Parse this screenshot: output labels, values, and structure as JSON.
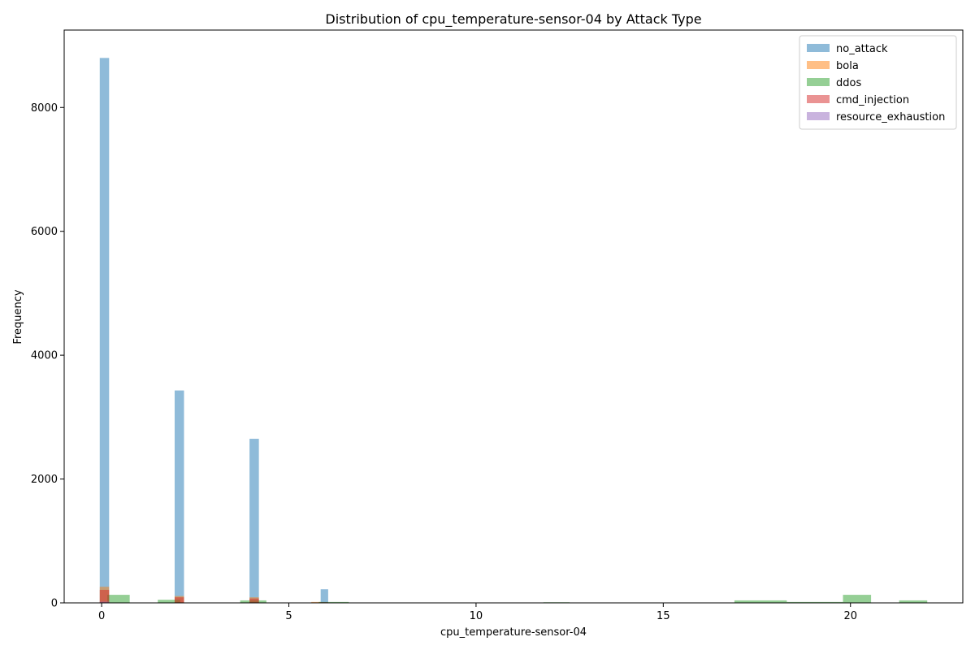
{
  "chart_data": {
    "type": "bar",
    "title": "Distribution of cpu_temperature-sensor-04 by Attack Type",
    "xlabel": "cpu_temperature-sensor-04",
    "ylabel": "Frequency",
    "xlim": [
      -1,
      23
    ],
    "ylim": [
      0,
      9250
    ],
    "xticks": [
      0,
      5,
      10,
      15,
      20
    ],
    "yticks": [
      0,
      2000,
      4000,
      6000,
      8000
    ],
    "grid": false,
    "legend_position": "top-right",
    "series": [
      {
        "name": "no_attack",
        "color": "#1f77b4",
        "opacity": 0.5,
        "bins": [
          {
            "x0": -0.05,
            "x1": 0.2,
            "count": 8800
          },
          {
            "x0": 1.95,
            "x1": 2.2,
            "count": 3430
          },
          {
            "x0": 3.95,
            "x1": 4.2,
            "count": 2650
          },
          {
            "x0": 5.85,
            "x1": 6.05,
            "count": 220
          }
        ]
      },
      {
        "name": "bola",
        "color": "#ff7f0e",
        "opacity": 0.5,
        "bins": [
          {
            "x0": -0.05,
            "x1": 0.2,
            "count": 260
          },
          {
            "x0": 1.95,
            "x1": 2.2,
            "count": 110
          },
          {
            "x0": 3.95,
            "x1": 4.2,
            "count": 90
          },
          {
            "x0": 5.6,
            "x1": 5.85,
            "count": 15
          }
        ]
      },
      {
        "name": "ddos",
        "color": "#2ca02c",
        "opacity": 0.5,
        "bins": [
          {
            "x0": 0.15,
            "x1": 0.75,
            "count": 130
          },
          {
            "x0": 1.5,
            "x1": 2.1,
            "count": 50
          },
          {
            "x0": 3.7,
            "x1": 4.4,
            "count": 40
          },
          {
            "x0": 5.8,
            "x1": 6.6,
            "count": 15
          },
          {
            "x0": 11.8,
            "x1": 12.5,
            "count": 10
          },
          {
            "x0": 16.9,
            "x1": 18.3,
            "count": 40
          },
          {
            "x0": 18.3,
            "x1": 19.8,
            "count": 15
          },
          {
            "x0": 19.8,
            "x1": 20.55,
            "count": 130
          },
          {
            "x0": 21.3,
            "x1": 22.05,
            "count": 40
          }
        ]
      },
      {
        "name": "cmd_injection",
        "color": "#d62728",
        "opacity": 0.5,
        "bins": [
          {
            "x0": -0.05,
            "x1": 0.2,
            "count": 210
          },
          {
            "x0": 1.95,
            "x1": 2.2,
            "count": 90
          },
          {
            "x0": 3.95,
            "x1": 4.2,
            "count": 70
          },
          {
            "x0": 5.85,
            "x1": 6.05,
            "count": 10
          }
        ]
      },
      {
        "name": "resource_exhaustion",
        "color": "#9467bd",
        "opacity": 0.5,
        "bins": [
          {
            "x0": -0.05,
            "x1": 0.2,
            "count": 20
          }
        ]
      }
    ]
  }
}
